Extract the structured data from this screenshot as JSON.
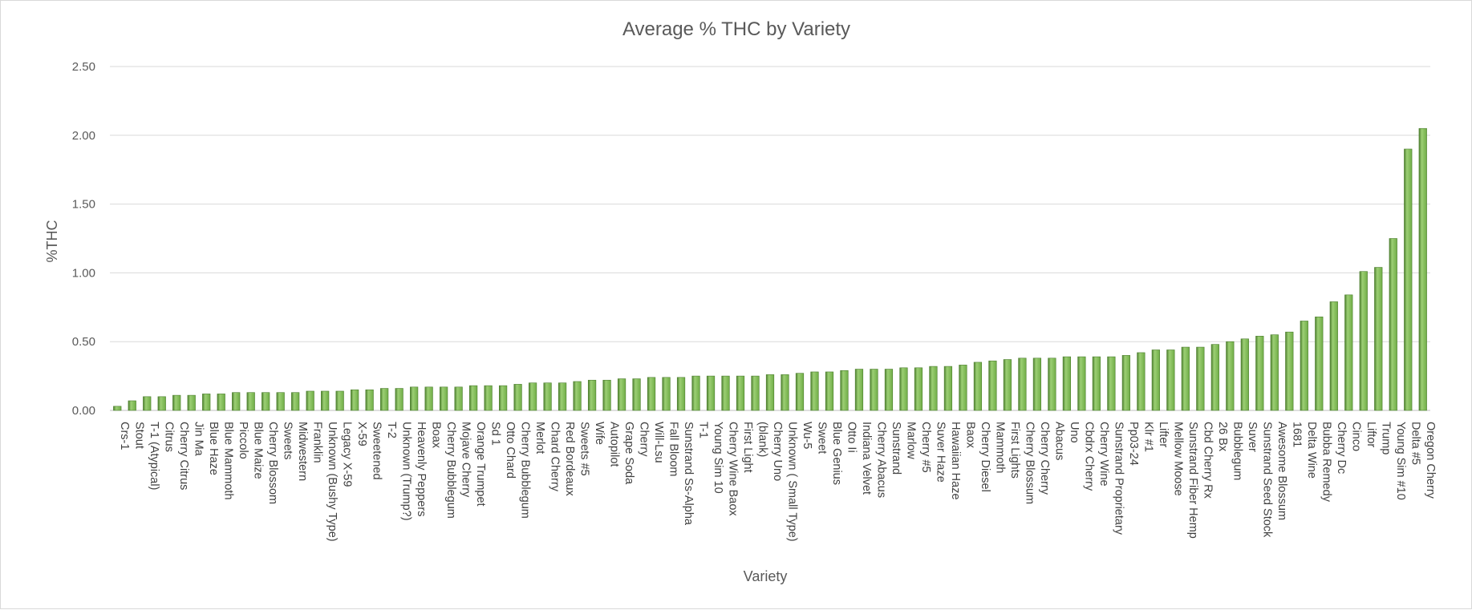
{
  "colors": {
    "bar_fill": "#70ad47",
    "bar_light": "#9ccf74",
    "bar_dark": "#4d7f2f"
  },
  "chart_data": {
    "type": "bar",
    "title": "Average % THC by Variety",
    "xlabel": "Variety",
    "ylabel": "%THC",
    "ylim": [
      0,
      2.5
    ],
    "yticks": [
      "0.00",
      "0.50",
      "1.00",
      "1.50",
      "2.00",
      "2.50"
    ],
    "grid": true,
    "legend": "none",
    "categories": [
      "Crs-1",
      "Stout",
      "T-1 (Atypical)",
      "Citrus",
      "Cherry Citrus",
      "Jin Ma",
      "Blue Haze",
      "Blue Mammoth",
      "Piccolo",
      "Blue Maize",
      "Cherry Blossom",
      "Sweets",
      "Midwestern",
      "Franklin",
      "Unknown (Bushy Type)",
      "Legacy X-59",
      "X-59",
      "Sweetened",
      "T-2",
      "Unknown (Trump?)",
      "Heavenly Peppers",
      "Boax",
      "Cherry Bubblegum",
      "Mojave Cherry",
      "Orange Trumpet",
      "Sd 1",
      "Otto Chard",
      "Cherry Bubblegum",
      "Merlot",
      "Chard Cherry",
      "Red Bordeaux",
      "Sweets #5",
      "Wife",
      "Autopilot",
      "Grape Soda",
      "Cherry",
      "Will-Lsu",
      "Fall Bloom",
      "Sunstrand Ss-Alpha",
      "T-1",
      "Young Sim 10",
      "Cherry Wine Baox",
      "First Light",
      "(blank)",
      "Cherry Uno",
      "Unknown ( Small Type)",
      "Wu-5",
      "Sweet",
      "Blue Genius",
      "Otto Ii",
      "Indiana Velvet",
      "Cherry Abacus",
      "Sunstrand",
      "Marlow",
      "Cherry #5",
      "Suver Haze",
      "Hawaiian Haze",
      "Baox",
      "Cherry Diesel",
      "Mammoth",
      "First Lights",
      "Cherry Blossum",
      "Cherry Cherry",
      "Abacus",
      "Uno",
      "Cbdrx Cherry",
      "Cherry Wine",
      "Sunstrand Proprietary",
      "Pp03-24",
      "Klr #1",
      "Lifter",
      "Mellow Moose",
      "Sunstrand Fiber Hemp",
      "Cbd Cherry Rx",
      "26 Bx",
      "Bubblegum",
      "Suver",
      "Sunstrand Seed Stock",
      "Awesome Blossum",
      "1681",
      "Delta Wine",
      "Bubba Remedy",
      "Cherry Dc",
      "Cinco",
      "Liftor",
      "Trump",
      "Young Sim #10",
      "Delta #5",
      "Oregon Cherry"
    ],
    "values": [
      0.03,
      0.07,
      0.1,
      0.1,
      0.11,
      0.11,
      0.12,
      0.12,
      0.13,
      0.13,
      0.13,
      0.13,
      0.13,
      0.14,
      0.14,
      0.14,
      0.15,
      0.15,
      0.16,
      0.16,
      0.17,
      0.17,
      0.17,
      0.17,
      0.18,
      0.18,
      0.18,
      0.19,
      0.2,
      0.2,
      0.2,
      0.21,
      0.22,
      0.22,
      0.23,
      0.23,
      0.24,
      0.24,
      0.24,
      0.25,
      0.25,
      0.25,
      0.25,
      0.25,
      0.26,
      0.26,
      0.27,
      0.28,
      0.28,
      0.29,
      0.3,
      0.3,
      0.3,
      0.31,
      0.31,
      0.32,
      0.32,
      0.33,
      0.35,
      0.36,
      0.37,
      0.38,
      0.38,
      0.38,
      0.39,
      0.39,
      0.39,
      0.39,
      0.4,
      0.42,
      0.44,
      0.44,
      0.46,
      0.46,
      0.48,
      0.5,
      0.52,
      0.54,
      0.55,
      0.57,
      0.65,
      0.68,
      0.79,
      0.84,
      1.01,
      1.04,
      1.25,
      1.9,
      2.05
    ]
  }
}
